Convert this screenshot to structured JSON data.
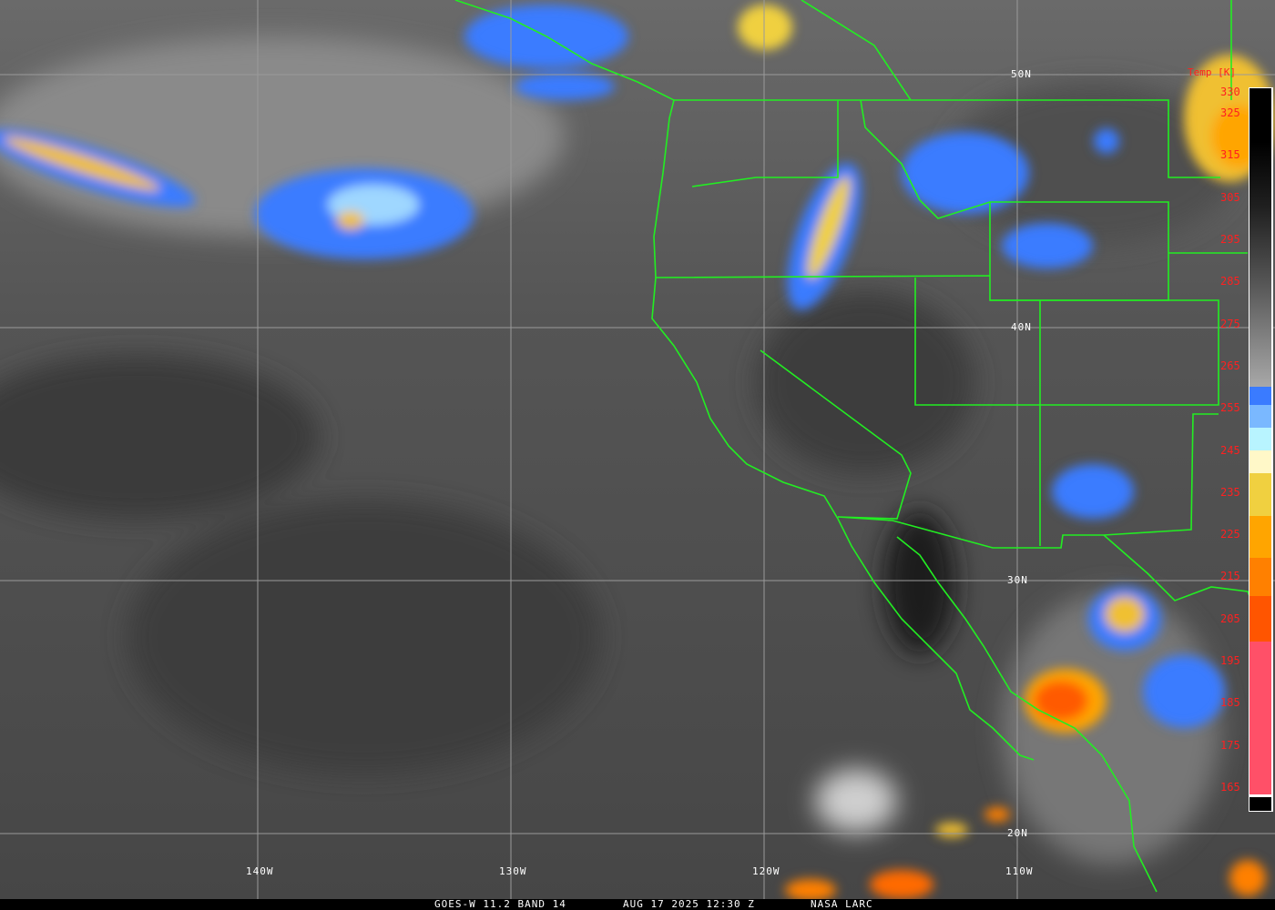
{
  "caption": {
    "satellite": "GOES-W 11.2 BAND 14",
    "datetime": "AUG 17 2025 12:30 Z",
    "source": "NASA LARC"
  },
  "latitude_labels": [
    "50N",
    "40N",
    "30N",
    "20N"
  ],
  "longitude_labels": [
    "140W",
    "130W",
    "120W",
    "110W"
  ],
  "colorbar": {
    "title": "Temp [K]",
    "ticks": [
      "330",
      "325",
      "315",
      "305",
      "295",
      "285",
      "275",
      "265",
      "255",
      "245",
      "235",
      "225",
      "215",
      "205",
      "195",
      "185",
      "175",
      "165"
    ],
    "range_k": [
      165,
      330
    ]
  },
  "colors": {
    "borders": "#22ee22",
    "grid": "#9a9a9a",
    "labels_colorbar": "#ff2020",
    "cold_cloud_pink": "#ff5068",
    "orange": "#ff8000",
    "yellow": "#f0d040",
    "blue": "#3a7bff"
  }
}
